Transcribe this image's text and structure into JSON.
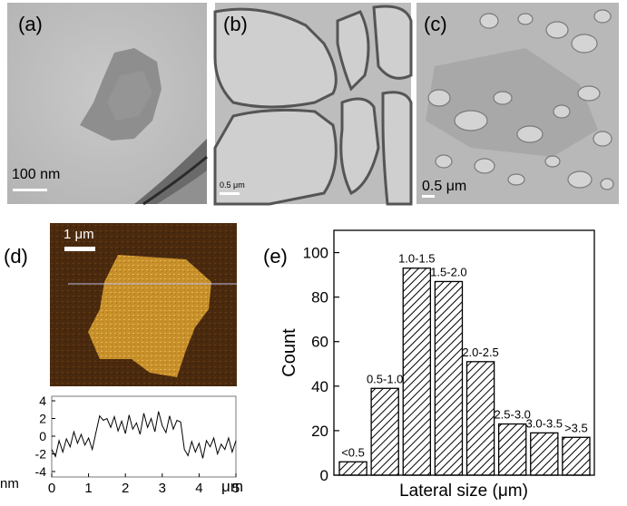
{
  "panels": {
    "a": {
      "label": "(a)",
      "scale_bar": "100 nm"
    },
    "b": {
      "label": "(b)",
      "scale_bar": "0.5 μm"
    },
    "c": {
      "label": "(c)",
      "scale_bar": "0.5 μm"
    },
    "d": {
      "label": "(d)",
      "scale_bar": "1 μm"
    },
    "e": {
      "label": "(e)"
    }
  },
  "chart_data": [
    {
      "type": "line",
      "xlabel_unit": "μm",
      "ylabel_unit": "nm",
      "xlim": [
        0,
        5
      ],
      "ylim": [
        -4,
        4
      ],
      "xticks": [
        "0",
        "1",
        "2",
        "3",
        "4",
        "5"
      ],
      "yticks": [
        "4",
        "2",
        "0",
        "-2",
        "-4"
      ],
      "series": [
        {
          "x": [
            0,
            0.1,
            0.2,
            0.3,
            0.4,
            0.5,
            0.6,
            0.7,
            0.8,
            0.9,
            1.0,
            1.1,
            1.2,
            1.3,
            1.4,
            1.5,
            1.6,
            1.7,
            1.8,
            1.9,
            2.0,
            2.1,
            2.2,
            2.3,
            2.4,
            2.5,
            2.6,
            2.7,
            2.8,
            2.9,
            3.0,
            3.1,
            3.2,
            3.3,
            3.4,
            3.5,
            3.6,
            3.7,
            3.8,
            3.9,
            4.0,
            4.1,
            4.2,
            4.3,
            4.4,
            4.5,
            4.6,
            4.7,
            4.8,
            4.9,
            5.0
          ],
          "y": [
            -1.5,
            -2.3,
            -0.5,
            -1.8,
            -0.3,
            -1.2,
            0.5,
            -0.8,
            0.2,
            -1.0,
            -0.2,
            -1.5,
            0.4,
            2.3,
            1.8,
            2.0,
            1.0,
            2.2,
            0.6,
            1.7,
            0.3,
            2.4,
            0.8,
            1.5,
            0.2,
            2.6,
            1.0,
            2.0,
            0.5,
            2.8,
            1.2,
            0.4,
            2.3,
            0.8,
            1.8,
            1.6,
            -1.5,
            -2.2,
            -0.6,
            -1.8,
            -0.8,
            -2.5,
            -0.5,
            -1.2,
            -0.2,
            -2.0,
            -0.9,
            -1.5,
            -0.2,
            -1.8,
            -0.5
          ]
        }
      ]
    },
    {
      "type": "bar",
      "ylabel": "Count",
      "xlabel": "Lateral size (μm)",
      "ylim": [
        0,
        110
      ],
      "yticks": [
        "0",
        "20",
        "40",
        "60",
        "80",
        "100"
      ],
      "categories": [
        "<0.5",
        "0.5-1.0",
        "1.0-1.5",
        "1.5-2.0",
        "2.0-2.5",
        "2.5-3.0",
        "3.0-3.5",
        ">3.5"
      ],
      "values": [
        6,
        39,
        93,
        87,
        51,
        23,
        19,
        17
      ]
    }
  ]
}
